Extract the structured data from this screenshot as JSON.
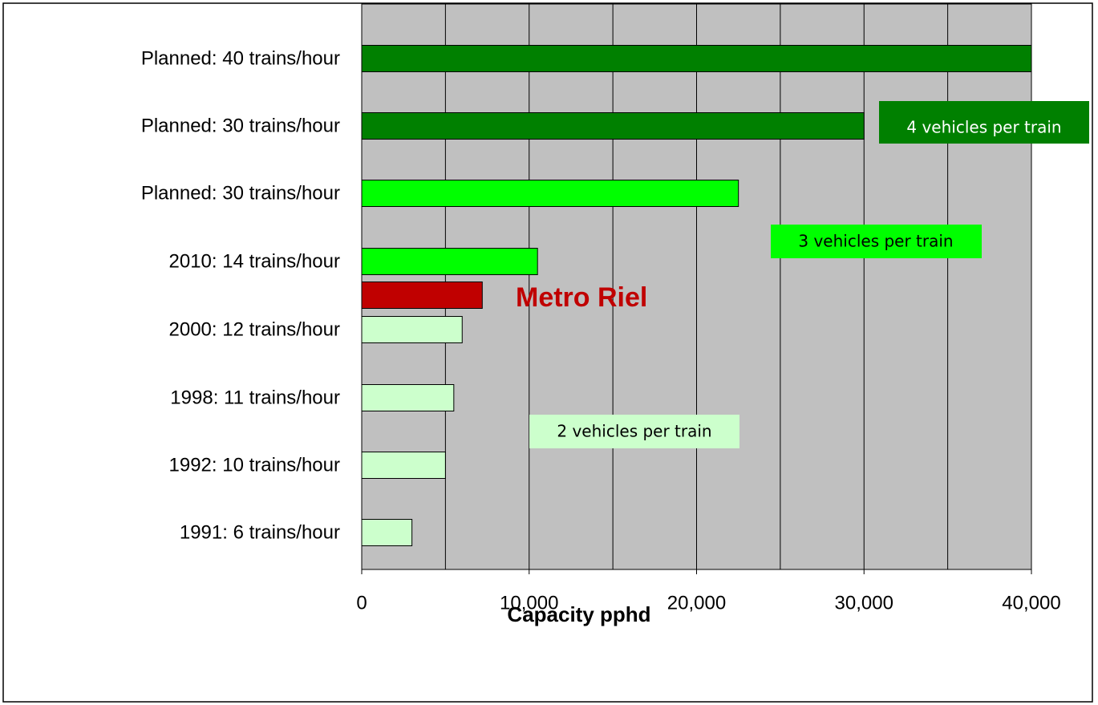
{
  "chart_data": {
    "type": "barh",
    "categories": [
      "Planned: 40 trains/hour",
      "Planned: 30 trains/hour",
      "Planned: 30 trains/hour",
      "2010: 14 trains/hour",
      null,
      "2000: 12 trains/hour",
      "1998: 11 trains/hour",
      "1992: 10 trains/hour",
      "1991: 6 trains/hour"
    ],
    "values": [
      40000,
      30000,
      22500,
      10500,
      7200,
      6000,
      5500,
      5000,
      3000
    ],
    "colors": [
      "#008000",
      "#008000",
      "#00ff00",
      "#00ff00",
      "#c00000",
      "#ccffcc",
      "#ccffcc",
      "#ccffcc",
      "#ccffcc"
    ],
    "xlim": [
      0,
      40000
    ],
    "xticks": [
      0,
      {
        "value": 10000,
        "label": "10,000"
      },
      {
        "value": 20000,
        "label": "20,000"
      },
      {
        "value": 30000,
        "label": "30,000"
      },
      {
        "value": 40000,
        "label": "40,000"
      }
    ],
    "minor_xticks": [
      5000,
      15000,
      25000,
      35000
    ],
    "grid": true,
    "x_label": "Capacity pphd",
    "annotations": [
      "4 vehicles per train",
      "3 vehicles per train",
      "2 vehicles per train",
      "Metro Riel"
    ]
  }
}
